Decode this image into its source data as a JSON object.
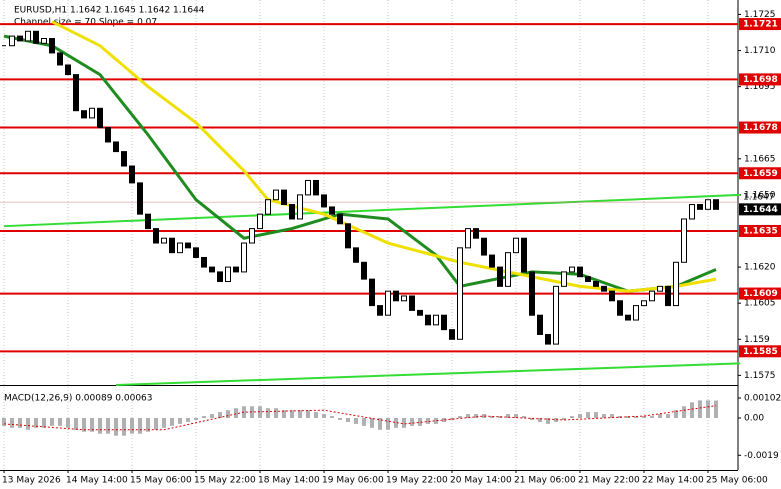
{
  "chart_data": {
    "type": "candlestick",
    "title": "EURUSD,H1  1.1642 1.1645 1.1642 1.1644",
    "subtitle": "Channel size = 70 Slope = 0.07",
    "categories": [
      "13 May 2026",
      null,
      null,
      null,
      null,
      null,
      null,
      null,
      "14 May 14:00",
      null,
      null,
      null,
      null,
      null,
      null,
      null,
      "15 May 06:00",
      null,
      null,
      null,
      null,
      null,
      null,
      null,
      "15 May 22:00",
      null,
      null,
      null,
      null,
      null,
      null,
      null,
      "18 May 14:00",
      null,
      null,
      null,
      null,
      null,
      null,
      null,
      "19 May 06:00",
      null,
      null,
      null,
      null,
      null,
      null,
      null,
      "19 May 22:00",
      null,
      null,
      null,
      null,
      null,
      null,
      null,
      "20 May 14:00",
      null,
      null,
      null,
      null,
      null,
      null,
      null,
      "21 May 06:00",
      null,
      null,
      null,
      null,
      null,
      null,
      null,
      "21 May 22:00",
      null,
      null,
      null,
      null,
      null,
      null,
      null,
      "22 May 14:00",
      null,
      null,
      null,
      null,
      null,
      null,
      null,
      "25 May 06:00",
      null
    ],
    "close": [
      1.1712,
      1.1716,
      1.1714,
      1.1718,
      1.1713,
      1.1715,
      1.1709,
      1.1704,
      1.17,
      1.1685,
      1.1682,
      1.1686,
      1.1678,
      1.1672,
      1.1668,
      1.1662,
      1.1655,
      1.1642,
      1.1636,
      1.163,
      1.1632,
      1.1626,
      1.163,
      1.1628,
      1.1624,
      1.162,
      1.1618,
      1.1614,
      1.162,
      1.1618,
      1.163,
      1.1636,
      1.1642,
      1.1648,
      1.1652,
      1.1646,
      1.164,
      1.165,
      1.1656,
      1.165,
      1.1645,
      1.1642,
      1.1638,
      1.1628,
      1.1622,
      1.1615,
      1.1604,
      1.16,
      1.161,
      1.1606,
      1.1608,
      1.1602,
      1.16,
      1.1596,
      1.16,
      1.1594,
      1.159,
      1.1628,
      1.1636,
      1.1632,
      1.1625,
      1.162,
      1.1612,
      1.1626,
      1.1632,
      1.1618,
      1.16,
      1.1592,
      1.1588,
      1.1612,
      1.1618,
      1.162,
      1.1616,
      1.1614,
      1.1612,
      1.161,
      1.1606,
      1.16,
      1.1598,
      1.1604,
      1.1606,
      1.161,
      1.1612,
      1.1604,
      1.1622,
      1.164,
      1.1646,
      1.1644,
      1.1648,
      1.1644
    ],
    "color": "#000000",
    "ylim": [
      1.1571,
      1.1731
    ],
    "yticks": [
      1.1725,
      {
        "value": 1.171,
        "label": "1.1710"
      },
      1.1695,
      1.1665,
      {
        "value": 1.165,
        "label": "1.1650"
      },
      {
        "value": 1.162,
        "label": "1.1620"
      },
      1.1605,
      1.159,
      1.1575
    ],
    "levels": {
      "color": "#e00000",
      "values": [
        1.1721,
        1.1698,
        1.1678,
        1.1659,
        1.1635,
        1.1609,
        1.1585
      ]
    },
    "current_price": 1.1644,
    "ask_price": 1.1647,
    "moving_averages": [
      {
        "color": "#1e8c1e",
        "x": [
          0,
          6,
          12,
          18,
          24,
          30,
          36,
          42,
          48,
          54,
          57,
          60,
          66,
          72,
          78,
          84,
          89
        ],
        "values": [
          1.1716,
          1.1712,
          1.17,
          1.1675,
          1.1648,
          1.1632,
          1.1636,
          1.1642,
          1.164,
          1.1625,
          1.1612,
          1.1614,
          1.1618,
          1.1617,
          1.161,
          1.1612,
          1.1619
        ]
      },
      {
        "color": "#f0e000",
        "x": [
          6,
          12,
          18,
          24,
          30,
          33,
          40,
          48,
          57,
          66,
          72,
          78,
          84,
          89
        ],
        "values": [
          1.1722,
          1.1712,
          1.1695,
          1.168,
          1.166,
          1.1648,
          1.1642,
          1.163,
          1.1622,
          1.1616,
          1.1612,
          1.161,
          1.1612,
          1.1615
        ]
      }
    ],
    "channel": [
      {
        "color": "#33dd33",
        "x": [
          0,
          92
        ],
        "values": [
          1.1637,
          1.165
        ]
      },
      {
        "color": "#33dd33",
        "x": [
          14,
          92
        ],
        "values": [
          1.1571,
          1.158
        ]
      }
    ],
    "macd": {
      "title": "MACD(12,26,9) 0.00089 0.00063",
      "ylim": [
        -0.00265,
        0.00153
      ],
      "yticks": [
        0.00102,
        {
          "value": 0,
          "label": "0.00"
        },
        -0.0019
      ],
      "histogram_color": "#b0b0b0",
      "histogram": [
        -0.0004,
        -0.0005,
        -0.0005,
        -0.0006,
        -0.0005,
        -0.0005,
        -0.0004,
        -0.0004,
        -0.0005,
        -0.0006,
        -0.0007,
        -0.0007,
        -0.0008,
        -0.0008,
        -0.0009,
        -0.0009,
        -0.0008,
        -0.0008,
        -0.0007,
        -0.0006,
        -0.0005,
        -0.0004,
        -0.0003,
        -0.0002,
        -0.0001,
        0.0001,
        0.0002,
        0.0003,
        0.0004,
        0.0005,
        0.0006,
        0.0006,
        0.0006,
        0.0005,
        0.0005,
        0.0004,
        0.0004,
        0.0004,
        0.0004,
        0.0003,
        0.0002,
        0.0001,
        -0.0001,
        -0.0002,
        -0.0003,
        -0.0004,
        -0.0005,
        -0.0006,
        -0.0006,
        -0.0005,
        -0.0005,
        -0.0004,
        -0.0004,
        -0.0003,
        -0.0003,
        -0.0002,
        -0.0001,
        0.0001,
        0.0002,
        0.0002,
        0.0002,
        0.0001,
        0.0001,
        0.0002,
        0.0002,
        0.0001,
        -0.0001,
        -0.0002,
        -0.0003,
        -0.0002,
        -0.0001,
        0.0001,
        0.0002,
        0.0003,
        0.0003,
        0.0002,
        0.0002,
        0.0001,
        0.0001,
        0.0001,
        0.0001,
        0.0001,
        0.0002,
        0.0002,
        0.0004,
        0.0006,
        0.0008,
        0.0009,
        0.0009,
        0.00089
      ],
      "signal_color": "#e00000",
      "signal_x": [
        0,
        10,
        20,
        30,
        40,
        50,
        60,
        70,
        80,
        89
      ],
      "signal": [
        -0.0003,
        -0.0006,
        -0.0006,
        0.0003,
        0.0004,
        -0.0003,
        0.0001,
        -0.0001,
        0.0001,
        0.00063
      ]
    }
  }
}
